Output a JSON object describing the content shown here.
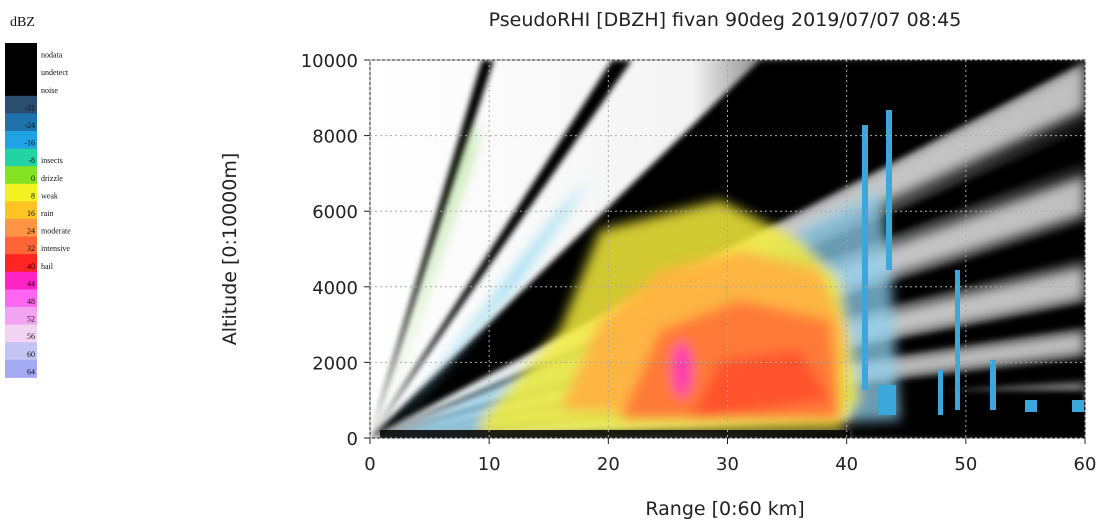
{
  "chart_data": {
    "type": "radar-rhi",
    "title": "PseudoRHI [DBZH] fivan 90deg  2019/07/07 08:45",
    "x_label": "Range [0:60 km]",
    "y_label": "Altitude [0:10000m]",
    "xlim": [
      0,
      60
    ],
    "xticks": [
      0,
      10,
      20,
      30,
      40,
      50,
      60
    ],
    "ylim": [
      0,
      10000
    ],
    "yticks": [
      0,
      2000,
      4000,
      6000,
      8000,
      10000
    ],
    "grid": true,
    "legend": {
      "title": "dBZ",
      "entries": [
        {
          "name": "nodata",
          "color": "#000000"
        },
        {
          "name": "undetect",
          "color": "#000000"
        },
        {
          "name": "noise",
          "color": "#000000"
        },
        {
          "value": -31,
          "color": "#2b4d6e"
        },
        {
          "value": -24,
          "color": "#1f73ad"
        },
        {
          "value": -16,
          "color": "#22a2e6"
        },
        {
          "value": -8,
          "name": "insects",
          "color": "#22d4a4"
        },
        {
          "value": 0,
          "name": "drizzle",
          "color": "#84e222"
        },
        {
          "value": 8,
          "name": "weak",
          "color": "#f2f222"
        },
        {
          "value": 16,
          "name": "rain",
          "color": "#ffc424"
        },
        {
          "value": 24,
          "name": "moderate",
          "color": "#ff9444"
        },
        {
          "value": 32,
          "name": "intensive",
          "color": "#ff6434"
        },
        {
          "value": 40,
          "name": "hail",
          "color": "#ff2424"
        },
        {
          "value": 44,
          "color": "#ff22c4"
        },
        {
          "value": 48,
          "color": "#ff66f2"
        },
        {
          "value": 52,
          "color": "#f2a4f2"
        },
        {
          "value": 56,
          "color": "#f2d4f2"
        },
        {
          "value": 60,
          "color": "#c4c4f2"
        },
        {
          "value": 64,
          "color": "#a4aaf2"
        }
      ]
    }
  }
}
